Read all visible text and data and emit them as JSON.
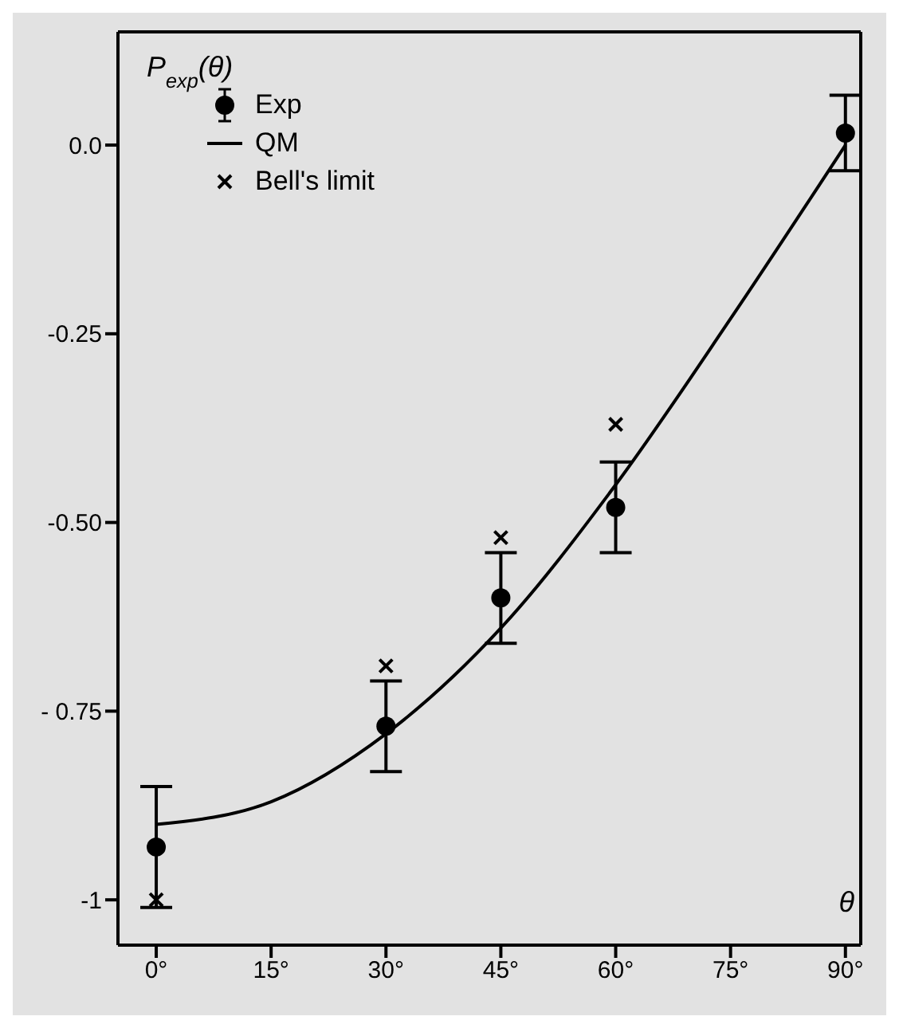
{
  "chart_data": {
    "type": "scatter",
    "xlabel": "θ",
    "ylabel": "P$_{exp}$(θ)",
    "xlim": [
      -5,
      92
    ],
    "xticks": [
      {
        "value": 0,
        "label": "0°"
      },
      {
        "value": 15,
        "label": "15°"
      },
      {
        "value": 30,
        "label": "30°"
      },
      {
        "value": 45,
        "label": "45°"
      },
      {
        "value": 60,
        "label": "60°"
      },
      {
        "value": 75,
        "label": "75°"
      },
      {
        "value": 90,
        "label": "90°"
      }
    ],
    "ylim": [
      -1.06,
      0.15
    ],
    "yticks": [
      {
        "value": 0,
        "label": "0.0"
      },
      {
        "value": -0.25,
        "label": "-0.25"
      },
      {
        "value": -0.5,
        "label": "-0.50"
      },
      {
        "value": -0.75,
        "label": "- 0.75"
      },
      {
        "value": -1,
        "label": "-1"
      }
    ],
    "legend": "top left",
    "series": [
      {
        "name": "Exp",
        "marker": "circle",
        "color": "#000000",
        "x": [
          0,
          30,
          45,
          60,
          90
        ],
        "values": [
          -0.93,
          -0.77,
          -0.6,
          -0.48,
          0.016
        ],
        "errors": [
          0.08,
          0.06,
          0.06,
          0.06,
          0.05
        ]
      },
      {
        "name": "QM",
        "type": "line",
        "marker": "none",
        "line_style": "solid",
        "color": "#000000",
        "x": [
          0,
          15,
          30,
          45,
          60,
          75,
          90
        ],
        "values": [
          -0.9,
          -0.87,
          -0.78,
          -0.64,
          -0.45,
          -0.23,
          0.0
        ]
      },
      {
        "name": "Bell's limit",
        "marker": "cross",
        "color": "#000000",
        "x": [
          0,
          30,
          45,
          60
        ],
        "values": [
          -1,
          -0.69,
          -0.52,
          -0.37
        ]
      }
    ]
  }
}
